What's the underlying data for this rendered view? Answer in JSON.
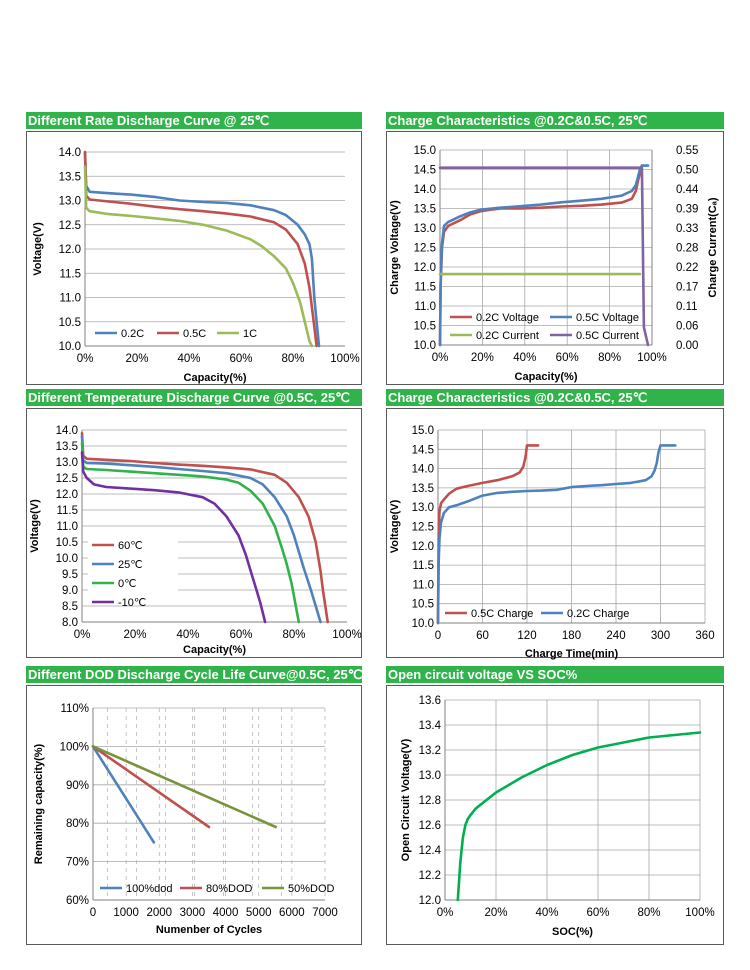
{
  "headers": [
    "Different Rate Discharge Curve @ 25℃",
    "Charge  Characteristics @0.2C&0.5C, 25℃",
    "Different Temperature Discharge Curve @0.5C, 25℃",
    "Charge  Characteristics @0.2C&0.5C, 25℃",
    "Different DOD Discharge Cycle Life Curve@0.5C, 25℃",
    "Open circuit voltage VS SOC%"
  ],
  "chart_data": [
    {
      "type": "line",
      "title": "Different Rate Discharge Curve @ 25℃",
      "xlabel": "Capacity(%)",
      "ylabel": "Voltage(V)",
      "xlim": [
        0,
        110
      ],
      "ylim": [
        10,
        14
      ],
      "xticks": [
        "0%",
        "20%",
        "40%",
        "60%",
        "80%",
        "100%"
      ],
      "yticks": [
        "10.0",
        "10.5",
        "11.0",
        "11.5",
        "12.0",
        "12.5",
        "13.0",
        "13.5",
        "14.0"
      ],
      "legend_position": "bottom-left",
      "series": [
        {
          "name": "0.2C",
          "color": "#4f81bd",
          "x": [
            0,
            0.5,
            2,
            10,
            20,
            30,
            40,
            50,
            60,
            70,
            80,
            85,
            90,
            93,
            95,
            96,
            97,
            98,
            99
          ],
          "y": [
            14.0,
            13.3,
            13.18,
            13.15,
            13.12,
            13.07,
            13.0,
            12.97,
            12.95,
            12.9,
            12.8,
            12.7,
            12.5,
            12.3,
            12.1,
            11.8,
            11.0,
            10.5,
            10.0
          ]
        },
        {
          "name": "0.5C",
          "color": "#c0504d",
          "x": [
            0,
            0.5,
            2,
            10,
            20,
            30,
            40,
            50,
            60,
            70,
            80,
            85,
            90,
            93,
            95,
            96,
            97,
            98
          ],
          "y": [
            14.0,
            13.1,
            13.02,
            12.98,
            12.93,
            12.87,
            12.82,
            12.78,
            12.73,
            12.67,
            12.55,
            12.4,
            12.1,
            11.7,
            11.2,
            10.8,
            10.4,
            10.0
          ]
        },
        {
          "name": "1C",
          "color": "#9bbb59",
          "x": [
            0,
            0.5,
            2,
            10,
            20,
            30,
            40,
            50,
            60,
            70,
            75,
            80,
            85,
            88,
            91,
            93,
            95,
            96
          ],
          "y": [
            13.7,
            12.85,
            12.78,
            12.72,
            12.68,
            12.63,
            12.58,
            12.5,
            12.38,
            12.2,
            12.05,
            11.85,
            11.6,
            11.3,
            10.9,
            10.5,
            10.1,
            10.0
          ]
        }
      ]
    },
    {
      "type": "line",
      "title": "Charge  Characteristics @0.2C&0.5C, 25℃",
      "xlabel": "Capacity(%)",
      "ylabel": "Charge Voltage(V)",
      "y2label": "Charge Current(Cₐ)",
      "xlim": [
        0,
        105
      ],
      "ylim": [
        10,
        15
      ],
      "y2lim": [
        0,
        0.55
      ],
      "xticks": [
        "0%",
        "20%",
        "40%",
        "60%",
        "80%",
        "100%"
      ],
      "yticks": [
        "10.0",
        "10.5",
        "11.0",
        "11.5",
        "12.0",
        "12.5",
        "13.0",
        "13.5",
        "14.0",
        "14.5",
        "15.0"
      ],
      "y2ticks": [
        "0.00",
        "0.06",
        "0.11",
        "0.17",
        "0.22",
        "0.28",
        "0.33",
        "0.39",
        "0.44",
        "0.50",
        "0.55"
      ],
      "legend_position": "bottom",
      "series": [
        {
          "name": "0.2C Voltage",
          "color": "#c0504d",
          "axis": "left",
          "x": [
            0,
            0.3,
            1,
            2,
            4,
            6,
            10,
            15,
            20,
            25,
            30,
            40,
            50,
            60,
            70,
            80,
            90,
            95,
            97,
            98,
            99,
            100
          ],
          "y": [
            10.0,
            11.5,
            12.5,
            12.9,
            13.05,
            13.1,
            13.2,
            13.35,
            13.43,
            13.47,
            13.5,
            13.5,
            13.52,
            13.55,
            13.57,
            13.6,
            13.65,
            13.75,
            13.95,
            14.2,
            14.4,
            14.6
          ]
        },
        {
          "name": "0.5C Voltage",
          "color": "#4f81bd",
          "axis": "left",
          "x": [
            0,
            0.3,
            1,
            2,
            4,
            6,
            10,
            15,
            20,
            30,
            40,
            50,
            60,
            70,
            80,
            90,
            95,
            97,
            98,
            99,
            100,
            103
          ],
          "y": [
            10.0,
            11.6,
            12.6,
            13.05,
            13.15,
            13.2,
            13.3,
            13.4,
            13.47,
            13.52,
            13.56,
            13.6,
            13.66,
            13.7,
            13.75,
            13.83,
            13.95,
            14.1,
            14.3,
            14.5,
            14.6,
            14.6
          ]
        },
        {
          "name": "0.2C Current",
          "color": "#9bbb59",
          "axis": "right",
          "x": [
            0,
            99
          ],
          "y": [
            0.2,
            0.2
          ]
        },
        {
          "name": "0.5C Current",
          "color": "#8064a2",
          "axis": "right",
          "x": [
            0,
            100,
            101,
            103
          ],
          "y": [
            0.5,
            0.5,
            0.05,
            0.0
          ]
        }
      ]
    },
    {
      "type": "line",
      "title": "Different Temperature Discharge Curve @0.5C, 25℃",
      "xlabel": "Capacity(%)",
      "ylabel": "Voltage(V)",
      "xlim": [
        0,
        110
      ],
      "ylim": [
        8,
        14
      ],
      "xticks": [
        "0%",
        "20%",
        "40%",
        "60%",
        "80%",
        "100%"
      ],
      "yticks": [
        "8.0",
        "8.5",
        "9.0",
        "9.5",
        "10.0",
        "10.5",
        "11.0",
        "11.5",
        "12.0",
        "12.5",
        "13.0",
        "13.5",
        "14.0"
      ],
      "legend_position": "bottom-left",
      "series": [
        {
          "name": "60℃",
          "color": "#c0504d",
          "x": [
            0,
            0.5,
            2,
            10,
            20,
            30,
            40,
            50,
            60,
            70,
            80,
            85,
            90,
            94,
            97,
            99,
            100,
            101,
            102
          ],
          "y": [
            13.9,
            13.2,
            13.1,
            13.07,
            13.03,
            12.97,
            12.92,
            12.88,
            12.83,
            12.77,
            12.6,
            12.35,
            11.9,
            11.3,
            10.5,
            9.6,
            9.0,
            8.5,
            8.0
          ]
        },
        {
          "name": "25℃",
          "color": "#4f81bd",
          "x": [
            0,
            0.5,
            2,
            10,
            20,
            30,
            40,
            50,
            60,
            70,
            75,
            80,
            85,
            88,
            90,
            92,
            95,
            97,
            99
          ],
          "y": [
            13.8,
            13.05,
            12.97,
            12.95,
            12.9,
            12.85,
            12.78,
            12.72,
            12.65,
            12.5,
            12.3,
            11.9,
            11.3,
            10.7,
            10.2,
            9.7,
            9.0,
            8.5,
            8.0
          ]
        },
        {
          "name": "0℃",
          "color": "#2fb34a",
          "x": [
            0,
            0.5,
            2,
            10,
            20,
            30,
            40,
            50,
            60,
            65,
            70,
            75,
            80,
            83,
            85,
            87,
            88,
            89,
            90
          ],
          "y": [
            13.6,
            12.85,
            12.78,
            12.75,
            12.7,
            12.65,
            12.6,
            12.55,
            12.45,
            12.35,
            12.1,
            11.7,
            11.0,
            10.3,
            9.8,
            9.2,
            8.8,
            8.4,
            8.0
          ]
        },
        {
          "name": "-10℃",
          "color": "#7030a0",
          "x": [
            0,
            0.5,
            2,
            5,
            10,
            20,
            30,
            40,
            50,
            55,
            60,
            65,
            68,
            70,
            72,
            74,
            76
          ],
          "y": [
            13.3,
            12.7,
            12.5,
            12.3,
            12.22,
            12.17,
            12.12,
            12.05,
            11.9,
            11.7,
            11.3,
            10.7,
            10.1,
            9.6,
            9.1,
            8.6,
            8.0
          ]
        }
      ]
    },
    {
      "type": "line",
      "title": "Charge  Characteristics @0.2C&0.5C, 25℃",
      "xlabel": "Charge Time(min)",
      "ylabel": "Voltage(V)",
      "xlim": [
        0,
        360
      ],
      "ylim": [
        10,
        15
      ],
      "xticks": [
        "0",
        "60",
        "120",
        "180",
        "240",
        "300",
        "360"
      ],
      "yticks": [
        "10.0",
        "10.5",
        "11.0",
        "11.5",
        "12.0",
        "12.5",
        "13.0",
        "13.5",
        "14.0",
        "14.5",
        "15.0"
      ],
      "legend_position": "bottom",
      "series": [
        {
          "name": "0.5C Charge",
          "color": "#c0504d",
          "x": [
            0,
            0.5,
            1,
            2,
            4,
            8,
            15,
            25,
            40,
            60,
            80,
            100,
            110,
            115,
            118,
            120,
            125,
            135
          ],
          "y": [
            10.0,
            11.5,
            12.3,
            12.9,
            13.1,
            13.2,
            13.35,
            13.48,
            13.55,
            13.63,
            13.7,
            13.8,
            13.9,
            14.05,
            14.3,
            14.6,
            14.6,
            14.6
          ]
        },
        {
          "name": "0.2C Charge",
          "color": "#4f81bd",
          "x": [
            0,
            1,
            2,
            4,
            8,
            15,
            25,
            40,
            60,
            80,
            100,
            120,
            140,
            160,
            180,
            200,
            220,
            240,
            260,
            280,
            288,
            292,
            295,
            297,
            300,
            310,
            320
          ],
          "y": [
            10.0,
            11.6,
            12.2,
            12.6,
            12.85,
            13.0,
            13.05,
            13.15,
            13.3,
            13.37,
            13.4,
            13.42,
            13.43,
            13.45,
            13.52,
            13.55,
            13.57,
            13.6,
            13.63,
            13.7,
            13.8,
            13.95,
            14.15,
            14.4,
            14.6,
            14.6,
            14.6
          ]
        }
      ]
    },
    {
      "type": "line",
      "title": "Different DOD Discharge Cycle Life Curve@0.5C, 25℃",
      "xlabel": "Numenber of Cycles",
      "ylabel": "Remaining capacity(%)",
      "xlim": [
        0,
        8000
      ],
      "ylim": [
        60,
        110
      ],
      "xticks": [
        "0",
        "1000",
        "2000",
        "3000",
        "4000",
        "5000",
        "6000",
        "7000"
      ],
      "yticks": [
        "60%",
        "70%",
        "80%",
        "90%",
        "100%",
        "110%"
      ],
      "legend_position": "bottom",
      "series": [
        {
          "name": "100%dod",
          "color": "#4f81bd",
          "x": [
            0,
            2100
          ],
          "y": [
            100,
            75
          ]
        },
        {
          "name": "80%DOD",
          "color": "#c0504d",
          "x": [
            0,
            4000
          ],
          "y": [
            100,
            79
          ]
        },
        {
          "name": "50%DOD",
          "color": "#77933c",
          "x": [
            0,
            6300
          ],
          "y": [
            100,
            79
          ]
        }
      ]
    },
    {
      "type": "line",
      "title": "Open circuit voltage VS SOC%",
      "xlabel": "SOC(%)",
      "ylabel": "Open Circuit Voltage(V)",
      "xlim": [
        0,
        100
      ],
      "ylim": [
        12.0,
        13.6
      ],
      "xticks": [
        "0%",
        "20%",
        "40%",
        "60%",
        "80%",
        "100%"
      ],
      "yticks": [
        "12.0",
        "12.2",
        "12.4",
        "12.6",
        "12.8",
        "13.0",
        "13.2",
        "13.4",
        "13.6"
      ],
      "series": [
        {
          "name": "OCV",
          "color": "#00b050",
          "x": [
            5,
            6,
            7,
            8,
            9,
            10,
            12,
            15,
            20,
            25,
            30,
            40,
            50,
            60,
            70,
            80,
            90,
            100
          ],
          "y": [
            12.0,
            12.3,
            12.5,
            12.6,
            12.65,
            12.68,
            12.73,
            12.78,
            12.86,
            12.92,
            12.98,
            13.08,
            13.16,
            13.22,
            13.26,
            13.3,
            13.32,
            13.34
          ]
        }
      ]
    }
  ]
}
